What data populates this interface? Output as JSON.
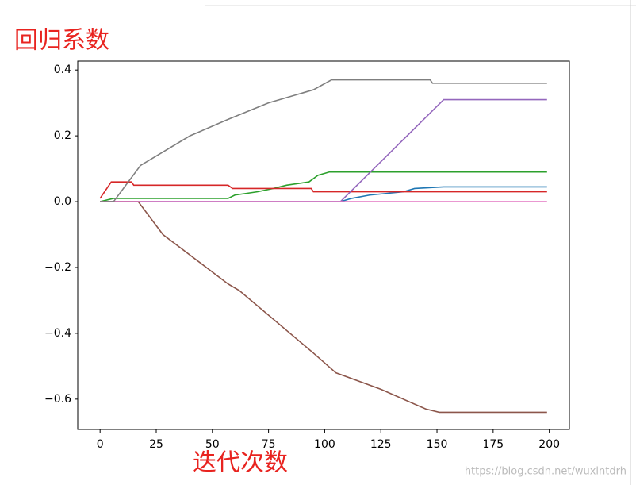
{
  "chart_data": {
    "type": "line",
    "annotations": [
      "回归系数",
      "迭代次数"
    ],
    "watermark": "https://blog.csdn.net/wuxintdrh",
    "xlim": [
      -9.95,
      208.95
    ],
    "xticks": [
      0,
      25,
      50,
      75,
      100,
      125,
      150,
      175,
      200
    ],
    "ylim": [
      -0.692,
      0.427
    ],
    "yticks": [
      {
        "value": -0.6,
        "label": "−0.6"
      },
      {
        "value": -0.4,
        "label": "−0.4"
      },
      {
        "value": -0.2,
        "label": "−0.2"
      },
      {
        "value": 0,
        "label": "0.0"
      },
      0.2,
      0.4
    ],
    "grid": false,
    "series": [
      {
        "color": "#1f77b4",
        "x": [
          0,
          107,
          112,
          120,
          135,
          140,
          153,
          199
        ],
        "values": [
          0,
          0,
          0.01,
          0.02,
          0.03,
          0.04,
          0.045,
          0.045
        ]
      },
      {
        "color": "#2ca02c",
        "x": [
          0,
          6,
          57,
          60,
          70,
          77,
          83,
          93,
          97,
          102,
          199
        ],
        "values": [
          0,
          0.01,
          0.01,
          0.02,
          0.03,
          0.04,
          0.05,
          0.06,
          0.08,
          0.09,
          0.09
        ]
      },
      {
        "color": "#d62728",
        "x": [
          0,
          5,
          14,
          15,
          57,
          59,
          94,
          95,
          199
        ],
        "values": [
          0.01,
          0.06,
          0.06,
          0.05,
          0.05,
          0.04,
          0.04,
          0.03,
          0.03
        ]
      },
      {
        "color": "#9467bd",
        "x": [
          0,
          107,
          153,
          199
        ],
        "values": [
          0,
          0,
          0.31,
          0.31
        ]
      },
      {
        "color": "#8c564b",
        "x": [
          0,
          17,
          28,
          57,
          62,
          95,
          105,
          125,
          145,
          151,
          199
        ],
        "values": [
          0,
          0,
          -0.1,
          -0.25,
          -0.27,
          -0.46,
          -0.52,
          -0.57,
          -0.63,
          -0.64,
          -0.64
        ]
      },
      {
        "color": "#e377c2",
        "x": [
          0,
          199
        ],
        "values": [
          0,
          0
        ]
      },
      {
        "color": "#7f7f7f",
        "x": [
          0,
          6,
          18,
          40,
          57,
          75,
          95,
          103,
          147,
          148,
          199
        ],
        "values": [
          0,
          0,
          0.11,
          0.2,
          0.25,
          0.3,
          0.34,
          0.37,
          0.37,
          0.36,
          0.36
        ]
      }
    ]
  }
}
